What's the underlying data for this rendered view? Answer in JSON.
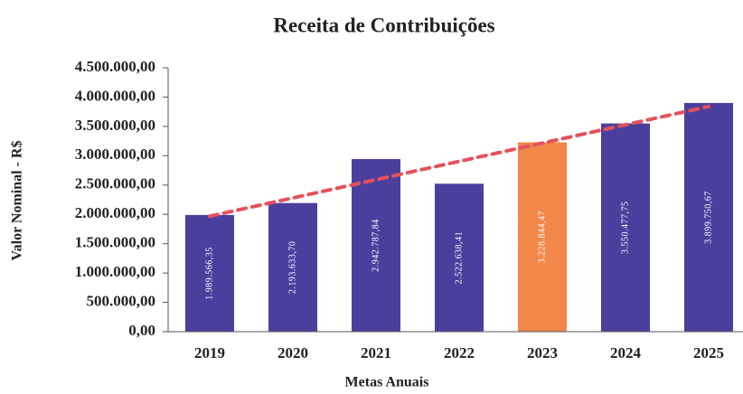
{
  "chart_data": {
    "type": "bar",
    "title": "Receita de Contribuições",
    "x_label": "Metas Anuais",
    "y_label": "Valor Nominal - R$",
    "categories": [
      "2019",
      "2020",
      "2021",
      "2022",
      "2023",
      "2024",
      "2025"
    ],
    "values": [
      1989566.35,
      2193633.7,
      2942787.84,
      2522638.41,
      3228844.47,
      3550477.75,
      3899750.67
    ],
    "value_labels": [
      "1.989.566,35",
      "2.193.633,70",
      "2.942.787,84",
      "2.522.638,41",
      "3.228.844,47",
      "3.550.477,75",
      "3.899.750,67"
    ],
    "colors": [
      "#4b3f9e",
      "#4b3f9e",
      "#4b3f9e",
      "#4b3f9e",
      "#f2874a",
      "#4b3f9e",
      "#4b3f9e"
    ],
    "trendline": {
      "type": "linear",
      "color": "#e4515c",
      "dashed": true
    },
    "ylim": [
      0,
      4500000
    ],
    "yticks": [
      {
        "value": 0,
        "label": "0,00"
      },
      {
        "value": 500000,
        "label": "500.000,00"
      },
      {
        "value": 1000000,
        "label": "1.000.000,00"
      },
      {
        "value": 1500000,
        "label": "1.500.000,00"
      },
      {
        "value": 2000000,
        "label": "2.000.000,00"
      },
      {
        "value": 2500000,
        "label": "2.500.000,00"
      },
      {
        "value": 3000000,
        "label": "3.000.000,00"
      },
      {
        "value": 3500000,
        "label": "3.500.000,00"
      },
      {
        "value": 4000000,
        "label": "4.000.000,00"
      },
      {
        "value": 4500000,
        "label": "4.500.000,00"
      }
    ],
    "grid": false
  }
}
